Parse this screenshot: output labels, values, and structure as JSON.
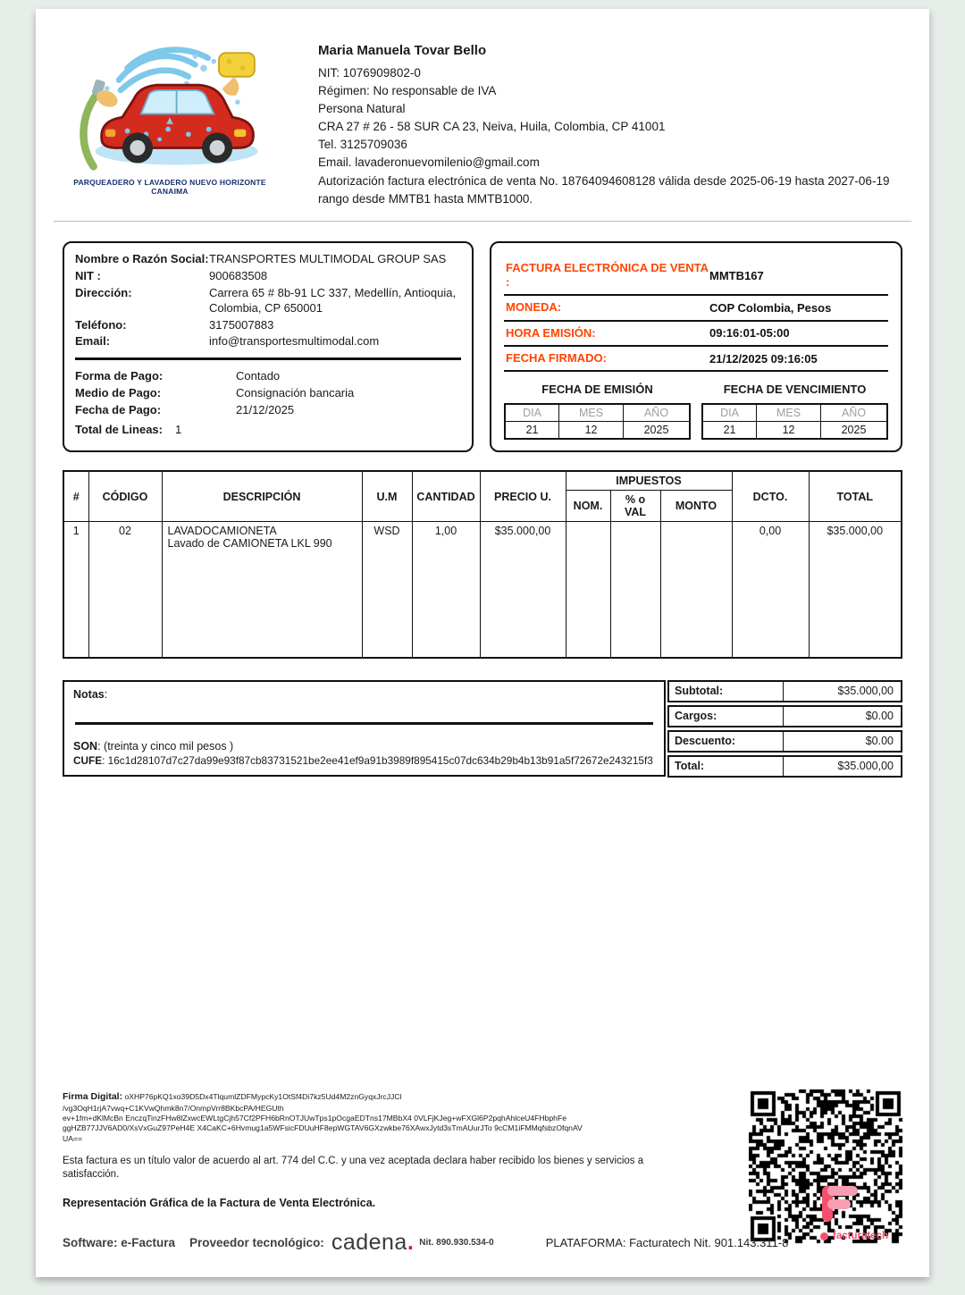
{
  "colors": {
    "accent_orange": "#ff4500",
    "brand_pink": "#f4516c",
    "brand_pink_light": "#f89db4",
    "cadena_dot": "#d6173a",
    "page_bg": "#e7ede9"
  },
  "seller": {
    "logo_caption": "PARQUEADERO Y LAVADERO NUEVO HORIZONTE CANAIMA",
    "name": "Maria Manuela Tovar Bello",
    "nit": "NIT: 1076909802-0",
    "regimen": "Régimen: No responsable de IVA",
    "persona": "Persona Natural",
    "address": "CRA 27 # 26 - 58 SUR CA 23, Neiva, Huila, Colombia, CP 41001",
    "phone": "Tel. 3125709036",
    "email": "Email. lavaderonuevomilenio@gmail.com",
    "authorization": "Autorización factura electrónica de venta No. 18764094608128 válida desde 2025-06-19 hasta 2027-06-19 rango desde MMTB1 hasta MMTB1000."
  },
  "customer": {
    "rows": [
      {
        "label": "Nombre o Razón Social:",
        "value": "TRANSPORTES MULTIMODAL GROUP SAS"
      },
      {
        "label": "NIT :",
        "value": "900683508"
      },
      {
        "label": "Dirección:",
        "value": "Carrera 65 # 8b-91 LC 337, Medellín, Antioquia, Colombia, CP 650001"
      },
      {
        "label": "Teléfono:",
        "value": "3175007883"
      },
      {
        "label": "Email:",
        "value": "info@transportesmultimodal.com"
      }
    ]
  },
  "payment": {
    "rows": [
      {
        "label": "Forma de Pago:",
        "value": "Contado"
      },
      {
        "label": "Medio de Pago:",
        "value": "Consignación bancaria"
      },
      {
        "label": "Fecha de Pago:",
        "value": "21/12/2025"
      }
    ],
    "total_lines_label": "Total de Lineas:",
    "total_lines_value": "1"
  },
  "meta": {
    "rows": [
      {
        "label": "FACTURA ELECTRÓNICA DE VENTA :",
        "value": "MMTB167"
      },
      {
        "label": "MONEDA:",
        "value": "COP Colombia, Pesos"
      },
      {
        "label": "HORA EMISIÓN:",
        "value": "09:16:01-05:00"
      },
      {
        "label": "FECHA FIRMADO:",
        "value": "21/12/2025 09:16:05"
      }
    ]
  },
  "dates": {
    "headers": {
      "dia": "DIA",
      "mes": "MES",
      "ano": "AÑO"
    },
    "emision": {
      "title": "FECHA DE EMISIÓN",
      "dia": "21",
      "mes": "12",
      "ano": "2025"
    },
    "vencimiento": {
      "title": "FECHA DE VENCIMIENTO",
      "dia": "21",
      "mes": "12",
      "ano": "2025"
    }
  },
  "items_table": {
    "headers": {
      "num": "#",
      "codigo": "CÓDIGO",
      "descripcion": "DESCRIPCIÓN",
      "um": "U.M",
      "cantidad": "CANTIDAD",
      "precio": "PRECIO U.",
      "impuestos": "IMPUESTOS",
      "nom": "NOM.",
      "pval": "% o VAL",
      "monto": "MONTO",
      "dcto": "DCTO.",
      "total": "TOTAL"
    },
    "rows": [
      {
        "num": "1",
        "codigo": "02",
        "desc_line1": "LAVADOCAMIONETA",
        "desc_line2": "Lavado de CAMIONETA LKL 990",
        "um": "WSD",
        "cantidad": "1,00",
        "precio": "$35.000,00",
        "nom": "",
        "pval": "",
        "monto": "",
        "dcto": "0,00",
        "total": "$35.000,00"
      }
    ]
  },
  "notes": {
    "notas_label": "Notas",
    "notas_colon": ":",
    "son_label": "SON",
    "son_value": ": (treinta y cinco mil pesos )",
    "cufe_label": "CUFE",
    "cufe_value": ": 16c1d28107d7c27da99e93f87cb83731521be2ee41ef9a91b3989f895415c07dc634b29b4b13b91a5f72672e243215f3"
  },
  "totals": {
    "rows": [
      {
        "label": "Subtotal:",
        "value": "$35.000,00"
      },
      {
        "label": "Cargos:",
        "value": "$0.00"
      },
      {
        "label": "Descuento:",
        "value": "$0.00"
      },
      {
        "label": "Total:",
        "value": "$35.000,00"
      }
    ]
  },
  "signature": {
    "label": "Firma Digital:",
    "lines": [
      " oXHP76pKQ1xo39D5Dx4TlqumlZDFMypcKy1OtSf4Di7kz5Ud4M2znGyqxJrcJJCl",
      "/vg3OqH1rjA7vwq+C1KVwQhmk8n7/OnmpVrr8BKbcPA/HEGUth",
      "ev+1fm+dKlMcBn EnczqTinzFHw8lZxwcEWLtgCjh57Cf2PFH6bRnOTJUwTps1pOcgaEDTns17MBbX4 0VLFjKJeg+wFXGl6P2pqhAhlceU4FHbphFe",
      "ggHZB77JJV6AD0/XsVxGuZ97PeH4E X4CaKC+6Hvmug1a5WFsicFDUuHF8epWGTAV6GXzwkbe76XAwxJytd3sTmAUurJTo 9cCM1iFMMqfsbzOfqnAV",
      "UA=="
    ]
  },
  "legal": {
    "acceptance": "Esta factura es un título valor de acuerdo al art. 774 del C.C. y una vez aceptada declara haber recibido los bienes y servicios a satisfacción.",
    "representation": "Representación Gráfica de la Factura de Venta Electrónica."
  },
  "footer": {
    "software": "Software: e-Factura",
    "provider_label": "Proveedor tecnológico:",
    "provider_brand": "cadena",
    "provider_brand_dot": ".",
    "provider_nit": "Nit. 890.930.534-0",
    "platform": "PLATAFORMA: Facturatech Nit. 901.143.311-8",
    "platform_logo_text": "facturatech"
  }
}
